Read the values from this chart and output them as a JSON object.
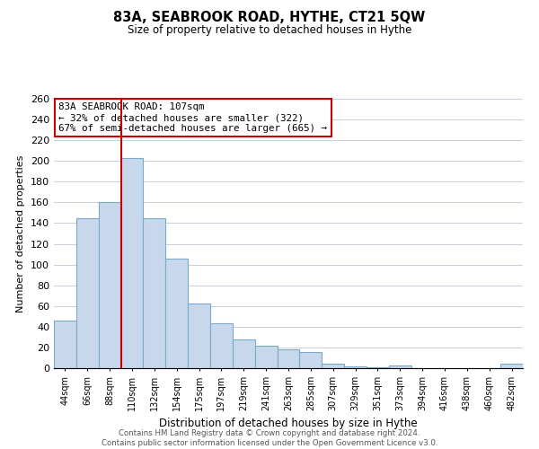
{
  "title": "83A, SEABROOK ROAD, HYTHE, CT21 5QW",
  "subtitle": "Size of property relative to detached houses in Hythe",
  "xlabel": "Distribution of detached houses by size in Hythe",
  "ylabel": "Number of detached properties",
  "bar_labels": [
    "44sqm",
    "66sqm",
    "88sqm",
    "110sqm",
    "132sqm",
    "154sqm",
    "175sqm",
    "197sqm",
    "219sqm",
    "241sqm",
    "263sqm",
    "285sqm",
    "307sqm",
    "329sqm",
    "351sqm",
    "373sqm",
    "394sqm",
    "416sqm",
    "438sqm",
    "460sqm",
    "482sqm"
  ],
  "bar_values": [
    46,
    145,
    160,
    203,
    145,
    106,
    62,
    43,
    28,
    22,
    18,
    16,
    4,
    2,
    1,
    3,
    0,
    0,
    0,
    0,
    4
  ],
  "bar_color": "#c8d8ec",
  "bar_edge_color": "#7aaac8",
  "property_line_idx": 3,
  "property_line_color": "#cc0000",
  "annotation_text": "83A SEABROOK ROAD: 107sqm\n← 32% of detached houses are smaller (322)\n67% of semi-detached houses are larger (665) →",
  "annotation_box_color": "#ffffff",
  "annotation_box_edge_color": "#cc0000",
  "ylim": [
    0,
    260
  ],
  "yticks": [
    0,
    20,
    40,
    60,
    80,
    100,
    120,
    140,
    160,
    180,
    200,
    220,
    240,
    260
  ],
  "footer_line1": "Contains HM Land Registry data © Crown copyright and database right 2024.",
  "footer_line2": "Contains public sector information licensed under the Open Government Licence v3.0.",
  "bg_color": "#ffffff",
  "grid_color": "#c8d0dc"
}
